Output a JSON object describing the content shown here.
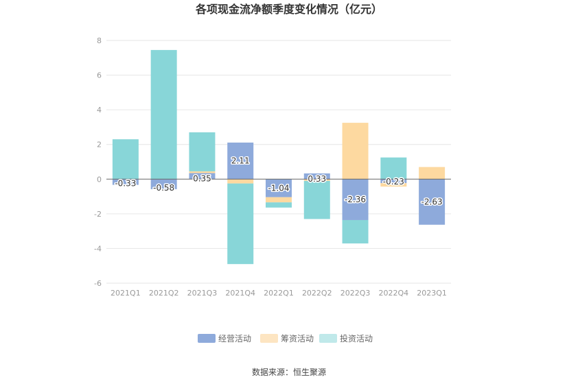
{
  "chart_data": {
    "type": "bar",
    "stacked": true,
    "title": "各项现金流净额季度变化情况（亿元）",
    "categories": [
      "2021Q1",
      "2021Q2",
      "2021Q3",
      "2021Q4",
      "2022Q1",
      "2022Q2",
      "2022Q3",
      "2022Q4",
      "2023Q1"
    ],
    "series": [
      {
        "name": "经营活动",
        "color": "#8eaadb",
        "values": [
          -0.33,
          -0.58,
          0.35,
          2.11,
          -1.04,
          0.33,
          -2.36,
          -0.23,
          -2.63
        ]
      },
      {
        "name": "筹资活动",
        "color": "#fdd9a0",
        "values": [
          0.0,
          0.0,
          0.1,
          -0.25,
          -0.3,
          -0.1,
          3.25,
          -0.2,
          0.7
        ]
      },
      {
        "name": "投资活动",
        "color": "#88d6d8",
        "values": [
          2.3,
          7.45,
          2.25,
          -4.65,
          -0.3,
          -2.2,
          -1.35,
          1.25,
          0.0
        ]
      }
    ],
    "labeled_series": "经营活动",
    "data_labels": [
      "-0.33",
      "-0.58",
      "0.35",
      "2.11",
      "-1.04",
      "0.33",
      "-2.36",
      "-0.23",
      "-2.63"
    ],
    "ylim": [
      -6,
      8
    ],
    "yticks": [
      "8",
      "6",
      "4",
      "2",
      "0",
      "-2",
      "-4",
      "-6"
    ],
    "ytick_values": [
      8,
      6,
      4,
      2,
      0,
      -2,
      -4,
      -6
    ],
    "legend_position": "bottom",
    "grid": true,
    "xlabel": "",
    "ylabel": ""
  },
  "legend_colors": {
    "经营活动": "#8eaadb",
    "筹资活动": "#fde5c2",
    "投资活动": "#c0e9ea"
  },
  "source_text": "数据来源：恒生聚源"
}
